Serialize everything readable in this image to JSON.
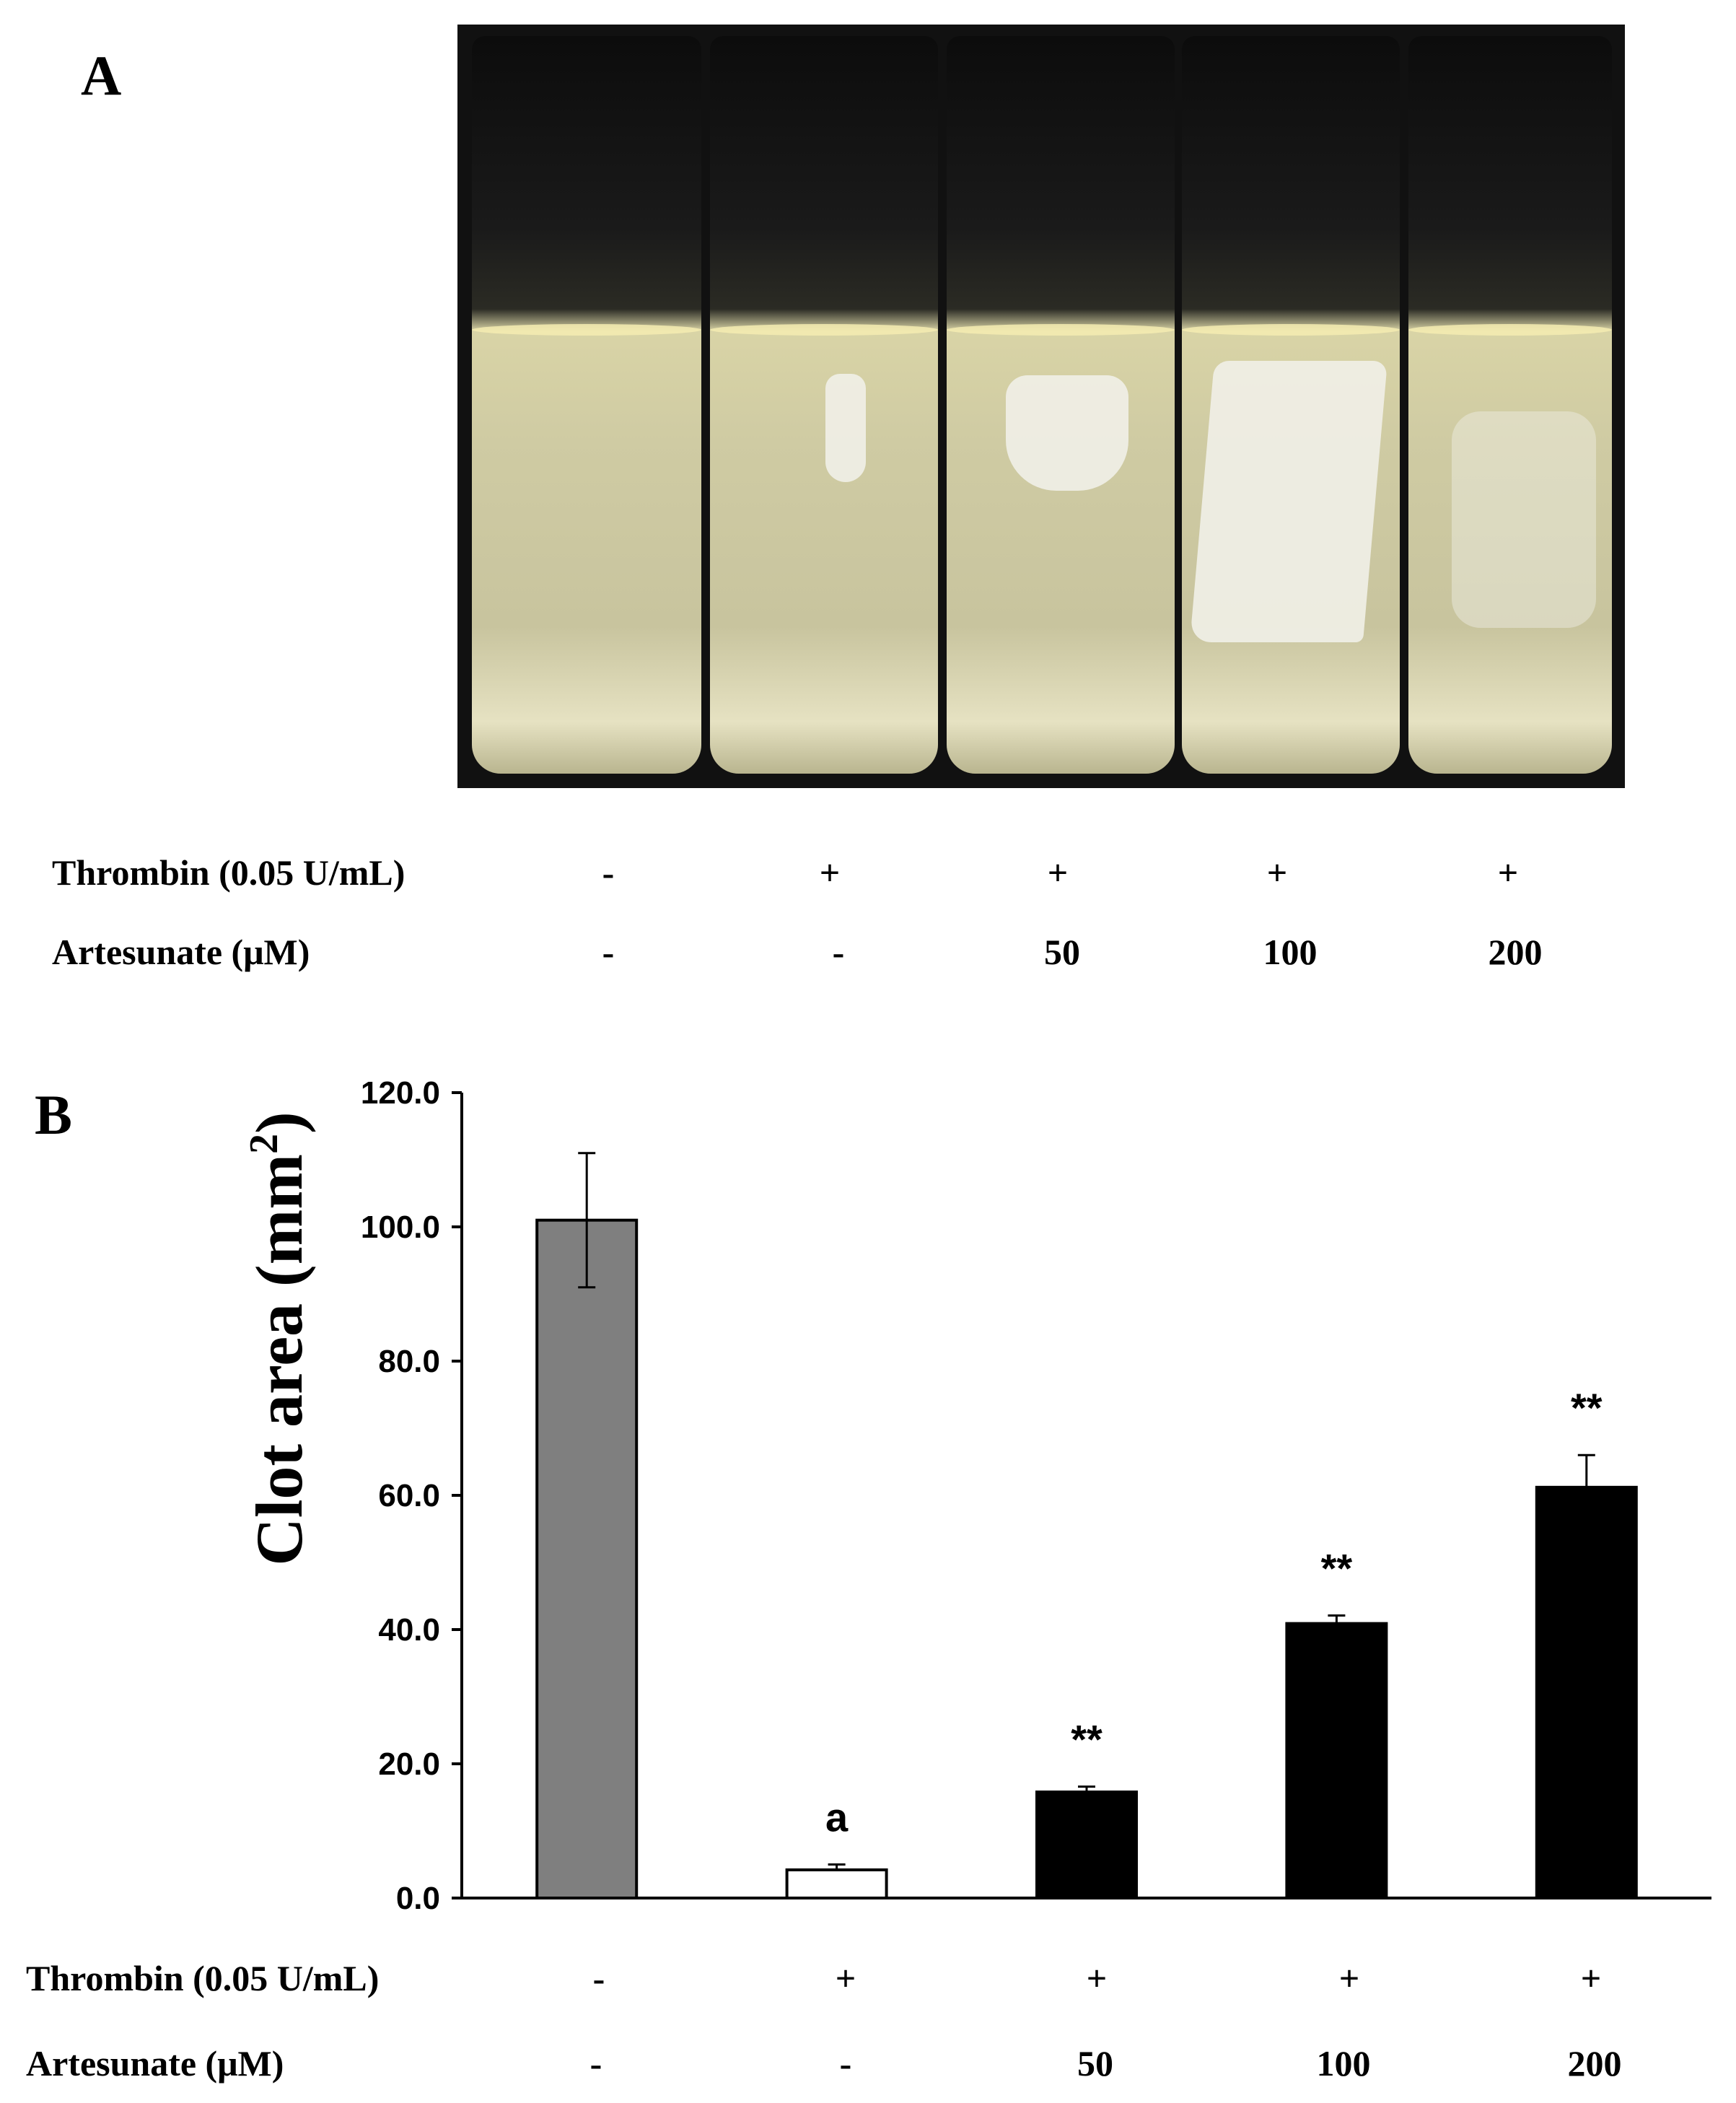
{
  "panel_a": {
    "label": "A",
    "photo": "photo-of-five-plasma-clot-tubes",
    "conditions": {
      "thrombin_label": "Thrombin  (0.05 U/mL)",
      "artesunate_label": "Artesunate (μM)",
      "thrombin": [
        "-",
        "+",
        "+",
        "+",
        "+"
      ],
      "artesunate": [
        "-",
        "-",
        "50",
        "100",
        "200"
      ]
    }
  },
  "panel_b": {
    "label": "B",
    "conditions": {
      "thrombin_label": "Thrombin  (0.05 U/mL)",
      "artesunate_label": "Artesunate (μM)",
      "thrombin": [
        "-",
        "+",
        "+",
        "+",
        "+"
      ],
      "artesunate": [
        "-",
        "-",
        "50",
        "100",
        "200"
      ]
    }
  },
  "chart_data": {
    "type": "bar",
    "title": "",
    "xlabel": "",
    "ylabel": "Clot area (mm",
    "ylabel_sup": "2",
    "ylabel_close": ")",
    "ylim": [
      0,
      120
    ],
    "yticks": [
      "0.0",
      "20.0",
      "40.0",
      "60.0",
      "80.0",
      "100.0",
      "120.0"
    ],
    "ytick_values": [
      0,
      20,
      40,
      60,
      80,
      100,
      120
    ],
    "values": [
      101,
      4.2,
      15.8,
      40.9,
      61.2
    ],
    "errors": [
      10,
      0.8,
      0.8,
      1.2,
      4.8
    ],
    "annotations": [
      "",
      "a",
      "**",
      "**",
      "**"
    ],
    "colors": [
      "#7f7f7f",
      "#ffffff",
      "#000000",
      "#000000",
      "#000000"
    ],
    "grid": false
  }
}
